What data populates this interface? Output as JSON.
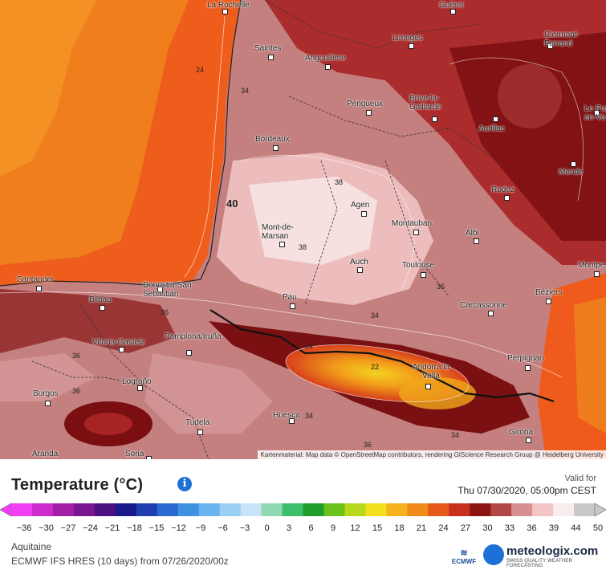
{
  "map": {
    "attribution": "Kartenmaterial: Map data © OpenStreetMap contributors, rendering GIScience Research Group @ Heidelberg University",
    "cities": [
      {
        "name": "La Rochelle"
      },
      {
        "name": "Guéret"
      },
      {
        "name": "Limoges"
      },
      {
        "name": "Clermont-Ferrand"
      },
      {
        "name": "Saintes"
      },
      {
        "name": "Angoulême"
      },
      {
        "name": "Périgueux"
      },
      {
        "name": "Brive-la-Gaillarde"
      },
      {
        "name": "Aurillac"
      },
      {
        "name": "Le Puy-en-Ve"
      },
      {
        "name": "Bordeaux"
      },
      {
        "name": "Mende"
      },
      {
        "name": "Rodez"
      },
      {
        "name": "Agen"
      },
      {
        "name": "Montauban"
      },
      {
        "name": "Albi"
      },
      {
        "name": "Mont-de-Marsan"
      },
      {
        "name": "Auch"
      },
      {
        "name": "Toulouse"
      },
      {
        "name": "Montpe"
      },
      {
        "name": "Santander"
      },
      {
        "name": "Donostia-San Sebastián"
      },
      {
        "name": "Bilbao"
      },
      {
        "name": "Pau"
      },
      {
        "name": "Béziers"
      },
      {
        "name": "Carcassonne"
      },
      {
        "name": "Vitoria-Gasteiz"
      },
      {
        "name": "Pamplona/Iruña"
      },
      {
        "name": "Perpignan"
      },
      {
        "name": "Andorra la Vella"
      },
      {
        "name": "Logroño"
      },
      {
        "name": "Burgos"
      },
      {
        "name": "Huesca"
      },
      {
        "name": "Tudela"
      },
      {
        "name": "Girona"
      },
      {
        "name": "Aranda"
      },
      {
        "name": "Soria"
      }
    ],
    "contour_labels": [
      "24",
      "34",
      "38",
      "40",
      "38",
      "36",
      "36",
      "34",
      "24",
      "22",
      "36",
      "36",
      "34",
      "34",
      "36"
    ]
  },
  "legend": {
    "title": "Temperature (°C)",
    "valid_label": "Valid for",
    "valid_date": "Thu 07/30/2020, 05:00pm CEST",
    "ticks": [
      "-36",
      "-30",
      "-27",
      "-24",
      "-21",
      "-18",
      "-15",
      "-12",
      "-9",
      "-6",
      "-3",
      "0",
      "3",
      "6",
      "9",
      "12",
      "15",
      "18",
      "21",
      "24",
      "27",
      "30",
      "33",
      "36",
      "39",
      "44",
      "50"
    ],
    "colors": [
      "#f23ef2",
      "#cc2ccc",
      "#a41ea8",
      "#7a1690",
      "#4c1080",
      "#1a1a8c",
      "#1f3fb0",
      "#2a6ad0",
      "#3f92e2",
      "#6ab4ee",
      "#9ad0f4",
      "#c8e4f8",
      "#8fd8b4",
      "#3cbe6a",
      "#1f9e2c",
      "#6cc21c",
      "#b8d81c",
      "#f0e01e",
      "#f6b21c",
      "#f08a1a",
      "#e6581a",
      "#c8301e",
      "#8c1412",
      "#b04848",
      "#d88f8f",
      "#f2c4c4",
      "#f8ecec",
      "#c8c8c8"
    ]
  },
  "footer": {
    "location": "Aquitaine",
    "model": "ECMWF IFS HRES (10 days) from 07/26/2020/00z",
    "ecmwf": "ECMWF",
    "brand": "meteologix.com",
    "tagline": "SWISS QUALITY WEATHER FORECASTING"
  }
}
